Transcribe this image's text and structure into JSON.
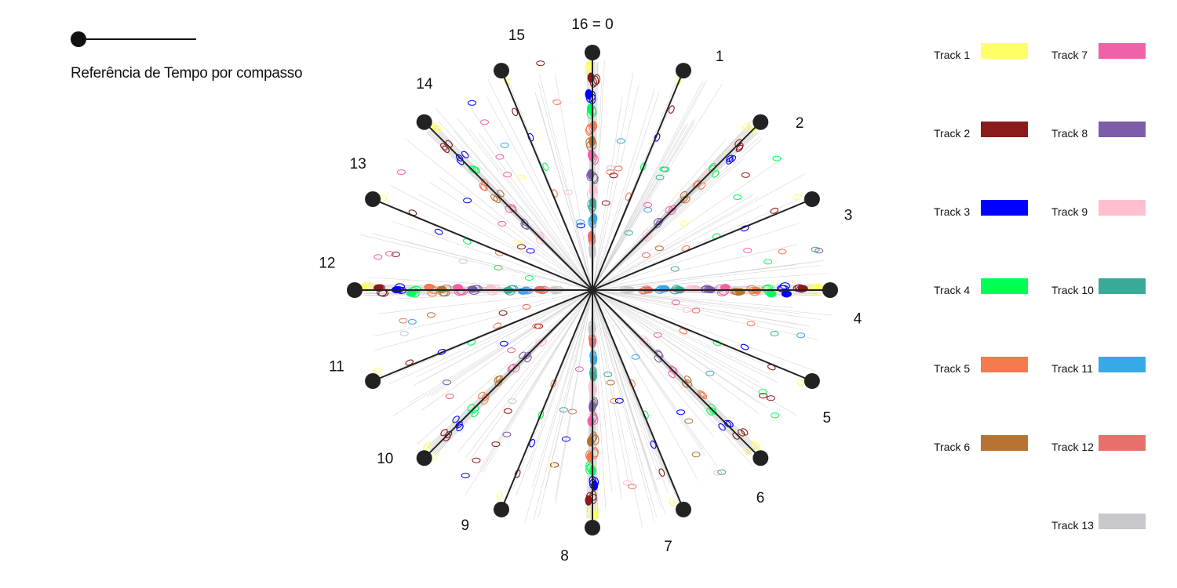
{
  "reference": {
    "label": "Referência de Tempo por compasso"
  },
  "chart_data": {
    "type": "radial",
    "positions": 16,
    "position_labels": [
      "16 = 0",
      "1",
      "2",
      "3",
      "4",
      "5",
      "6",
      "7",
      "8",
      "9",
      "10",
      "11",
      "12",
      "13",
      "14",
      "15"
    ],
    "tracks": [
      {
        "name": "Track 1",
        "color": "#ffff66"
      },
      {
        "name": "Track 2",
        "color": "#8b1a1a"
      },
      {
        "name": "Track 3",
        "color": "#0000ff"
      },
      {
        "name": "Track 4",
        "color": "#00ff55"
      },
      {
        "name": "Track 5",
        "color": "#f47a50"
      },
      {
        "name": "Track 6",
        "color": "#b87333"
      },
      {
        "name": "Track 7",
        "color": "#f062a8"
      },
      {
        "name": "Track 8",
        "color": "#7b5ea7"
      },
      {
        "name": "Track 9",
        "color": "#ffbfcf"
      },
      {
        "name": "Track 10",
        "color": "#3aaa98"
      },
      {
        "name": "Track 11",
        "color": "#36a9e8"
      },
      {
        "name": "Track 12",
        "color": "#e8706a"
      },
      {
        "name": "Track 13",
        "color": "#c8c8cc"
      }
    ],
    "strong_positions": [
      0,
      4,
      8,
      12
    ],
    "medium_positions": [
      2,
      6,
      10,
      14
    ],
    "legend_placement": "right"
  }
}
